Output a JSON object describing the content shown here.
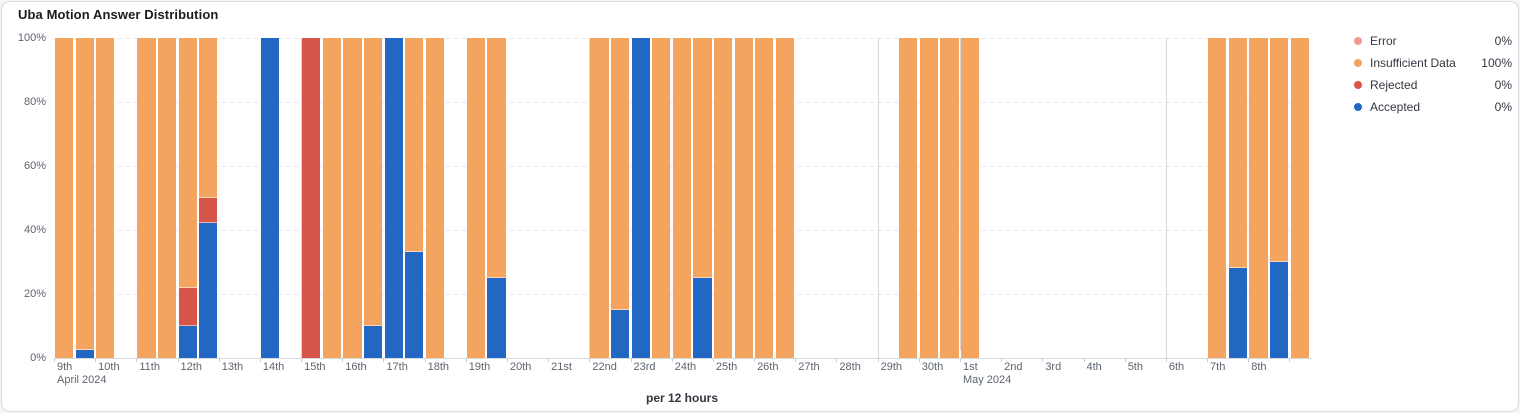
{
  "card": {
    "title": "Uba Motion Answer Distribution"
  },
  "colors": {
    "error": "#EC9C8D",
    "insufficient": "#F5A45F",
    "rejected": "#D65548",
    "accepted": "#2268C2"
  },
  "legend": [
    {
      "key": "error",
      "label": "Error",
      "value": "0%"
    },
    {
      "key": "insufficient",
      "label": "Insufficient Data",
      "value": "100%"
    },
    {
      "key": "rejected",
      "label": "Rejected",
      "value": "0%"
    },
    {
      "key": "accepted",
      "label": "Accepted",
      "value": "0%"
    }
  ],
  "chart_data": {
    "type": "bar",
    "stacked": true,
    "title": "Uba Motion Answer Distribution",
    "unit_caption": "per 12 hours",
    "interval": "12 hours",
    "total_slots": 61,
    "stack_order": [
      "accepted",
      "rejected",
      "insufficient",
      "error"
    ],
    "y_axis": {
      "range": [
        0,
        100
      ],
      "ticks": [
        "0%",
        "20%",
        "40%",
        "60%",
        "80%",
        "100%"
      ],
      "grid": "dashed"
    },
    "x_axis": {
      "tick_labels": [
        "9th",
        "10th",
        "11th",
        "12th",
        "13th",
        "14th",
        "15th",
        "16th",
        "17th",
        "18th",
        "19th",
        "20th",
        "21st",
        "22nd",
        "23rd",
        "24th",
        "25th",
        "26th",
        "27th",
        "28th",
        "29th",
        "30th",
        "1st",
        "2nd",
        "3rd",
        "4th",
        "5th",
        "6th",
        "7th",
        "8th",
        ""
      ],
      "month_markers": [
        {
          "label": "April 2024",
          "tick_index": 0
        },
        {
          "label": "May 2024",
          "tick_index": 22
        }
      ],
      "week_line_ticks": [
        6,
        13,
        20,
        27
      ],
      "month_line_tick": 22
    },
    "bars": [
      {
        "slot": 0,
        "label": "Apr 9 AM",
        "accepted": 0,
        "rejected": 0,
        "insufficient": 100,
        "error": 0
      },
      {
        "slot": 1,
        "label": "Apr 9 PM",
        "accepted": 2.5,
        "rejected": 0,
        "insufficient": 97.5,
        "error": 0
      },
      {
        "slot": 2,
        "label": "Apr 10 AM",
        "accepted": 0,
        "rejected": 0,
        "insufficient": 100,
        "error": 0
      },
      {
        "slot": 4,
        "label": "Apr 11 AM",
        "accepted": 0,
        "rejected": 0,
        "insufficient": 100,
        "error": 0
      },
      {
        "slot": 5,
        "label": "Apr 11 PM",
        "accepted": 0,
        "rejected": 0,
        "insufficient": 100,
        "error": 0
      },
      {
        "slot": 6,
        "label": "Apr 12 AM",
        "accepted": 10,
        "rejected": 12,
        "insufficient": 78,
        "error": 0
      },
      {
        "slot": 7,
        "label": "Apr 12 PM",
        "accepted": 42,
        "rejected": 8,
        "insufficient": 50,
        "error": 0
      },
      {
        "slot": 10,
        "label": "Apr 14 AM",
        "accepted": 100,
        "rejected": 0,
        "insufficient": 0,
        "error": 0
      },
      {
        "slot": 12,
        "label": "Apr 15 AM",
        "accepted": 0,
        "rejected": 100,
        "insufficient": 0,
        "error": 0
      },
      {
        "slot": 13,
        "label": "Apr 15 PM",
        "accepted": 0,
        "rejected": 0,
        "insufficient": 100,
        "error": 0
      },
      {
        "slot": 14,
        "label": "Apr 16 AM",
        "accepted": 0,
        "rejected": 0,
        "insufficient": 100,
        "error": 0
      },
      {
        "slot": 15,
        "label": "Apr 16 PM",
        "accepted": 10,
        "rejected": 0,
        "insufficient": 90,
        "error": 0
      },
      {
        "slot": 16,
        "label": "Apr 17 AM",
        "accepted": 100,
        "rejected": 0,
        "insufficient": 0,
        "error": 0
      },
      {
        "slot": 17,
        "label": "Apr 17 PM",
        "accepted": 33,
        "rejected": 0,
        "insufficient": 67,
        "error": 0
      },
      {
        "slot": 18,
        "label": "Apr 18 AM",
        "accepted": 0,
        "rejected": 0,
        "insufficient": 100,
        "error": 0
      },
      {
        "slot": 20,
        "label": "Apr 19 AM",
        "accepted": 0,
        "rejected": 0,
        "insufficient": 100,
        "error": 0
      },
      {
        "slot": 21,
        "label": "Apr 19 PM",
        "accepted": 25,
        "rejected": 0,
        "insufficient": 75,
        "error": 0
      },
      {
        "slot": 26,
        "label": "Apr 22 AM",
        "accepted": 0,
        "rejected": 0,
        "insufficient": 100,
        "error": 0
      },
      {
        "slot": 27,
        "label": "Apr 22 PM",
        "accepted": 15,
        "rejected": 0,
        "insufficient": 85,
        "error": 0
      },
      {
        "slot": 28,
        "label": "Apr 23 AM",
        "accepted": 100,
        "rejected": 0,
        "insufficient": 0,
        "error": 0
      },
      {
        "slot": 29,
        "label": "Apr 23 PM",
        "accepted": 0,
        "rejected": 0,
        "insufficient": 100,
        "error": 0
      },
      {
        "slot": 30,
        "label": "Apr 24 AM",
        "accepted": 0,
        "rejected": 0,
        "insufficient": 100,
        "error": 0
      },
      {
        "slot": 31,
        "label": "Apr 24 PM",
        "accepted": 25,
        "rejected": 0,
        "insufficient": 75,
        "error": 0
      },
      {
        "slot": 32,
        "label": "Apr 25 AM",
        "accepted": 0,
        "rejected": 0,
        "insufficient": 100,
        "error": 0
      },
      {
        "slot": 33,
        "label": "Apr 25 PM",
        "accepted": 0,
        "rejected": 0,
        "insufficient": 100,
        "error": 0
      },
      {
        "slot": 34,
        "label": "Apr 26 AM",
        "accepted": 0,
        "rejected": 0,
        "insufficient": 100,
        "error": 0
      },
      {
        "slot": 35,
        "label": "Apr 26 PM",
        "accepted": 0,
        "rejected": 0,
        "insufficient": 100,
        "error": 0
      },
      {
        "slot": 41,
        "label": "Apr 29 PM",
        "accepted": 0,
        "rejected": 0,
        "insufficient": 100,
        "error": 0
      },
      {
        "slot": 42,
        "label": "Apr 30 AM",
        "accepted": 0,
        "rejected": 0,
        "insufficient": 100,
        "error": 0
      },
      {
        "slot": 43,
        "label": "Apr 30 PM",
        "accepted": 0,
        "rejected": 0,
        "insufficient": 100,
        "error": 0
      },
      {
        "slot": 44,
        "label": "May 1 AM",
        "accepted": 0,
        "rejected": 0,
        "insufficient": 100,
        "error": 0
      },
      {
        "slot": 56,
        "label": "May 7 AM",
        "accepted": 0,
        "rejected": 0,
        "insufficient": 100,
        "error": 0
      },
      {
        "slot": 57,
        "label": "May 7 PM",
        "accepted": 28,
        "rejected": 0,
        "insufficient": 72,
        "error": 0
      },
      {
        "slot": 58,
        "label": "May 8 AM",
        "accepted": 0,
        "rejected": 0,
        "insufficient": 100,
        "error": 0
      },
      {
        "slot": 59,
        "label": "May 8 PM",
        "accepted": 30,
        "rejected": 0,
        "insufficient": 70,
        "error": 0
      },
      {
        "slot": 60,
        "label": "May 9 AM",
        "accepted": 0,
        "rejected": 0,
        "insufficient": 100,
        "error": 0
      }
    ]
  }
}
